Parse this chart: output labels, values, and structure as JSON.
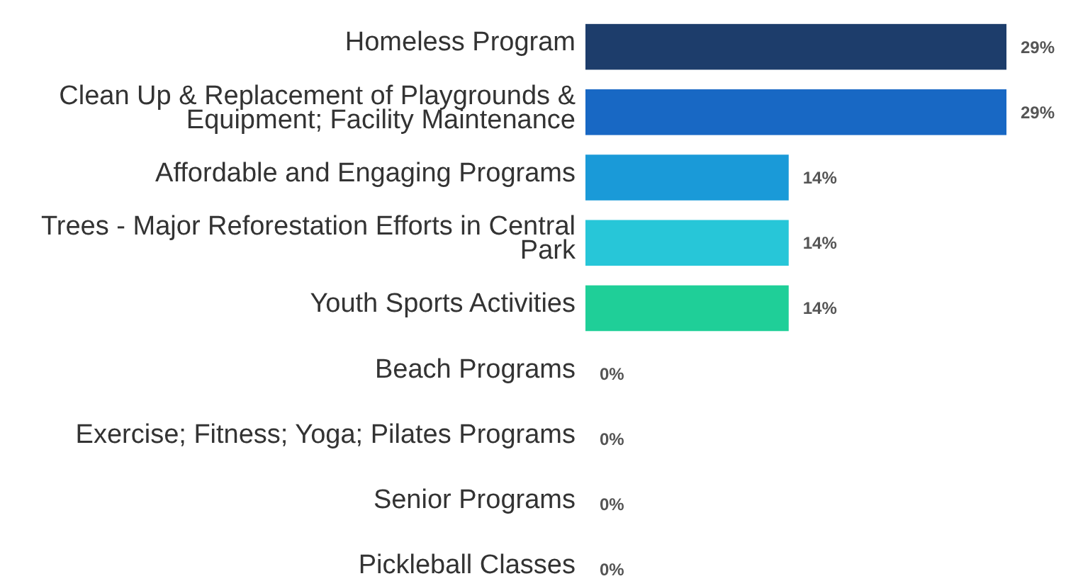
{
  "chart_data": {
    "type": "bar",
    "orientation": "horizontal",
    "categories": [
      "Homeless Program",
      "Clean Up & Replacement of Playgrounds & Equipment; Facility Maintenance",
      "Affordable and Engaging Programs",
      "Trees - Major Reforestation Efforts in Central Park",
      "Youth Sports Activities",
      "Beach Programs",
      "Exercise; Fitness; Yoga; Pilates Programs",
      "Senior Programs",
      "Pickleball Classes"
    ],
    "values": [
      29,
      29,
      14,
      14,
      14,
      0,
      0,
      0,
      0
    ],
    "value_labels": [
      "29%",
      "29%",
      "14%",
      "14%",
      "14%",
      "0%",
      "0%",
      "0%",
      "0%"
    ],
    "colors": [
      "#1d3d6b",
      "#1868c4",
      "#1a9ad8",
      "#27c6d8",
      "#1fcf98",
      "#1fcf98",
      "#1fcf98",
      "#1fcf98",
      "#1fcf98"
    ]
  }
}
